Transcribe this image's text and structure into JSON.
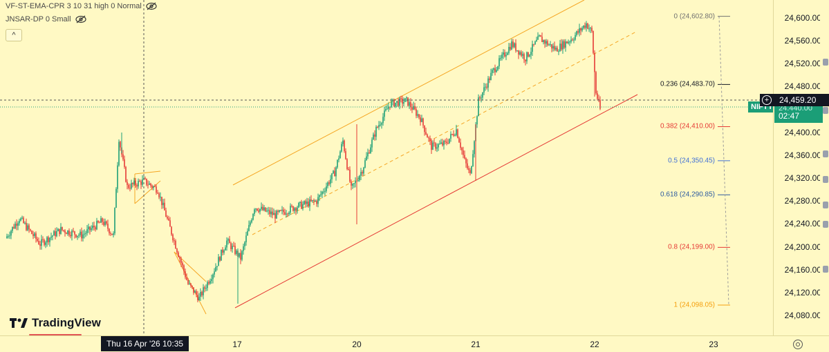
{
  "legends": [
    {
      "text": "VF-ST-EMA-CPR 3 10 31 high 0 Normal",
      "icon": "eye-off-icon"
    },
    {
      "text": "JNSAR-DP 0 Small",
      "icon": "eye-off-icon"
    }
  ],
  "collapse_label": "^",
  "brand": "TradingView",
  "crosshair": {
    "time": "Thu 16 Apr '26   10:35",
    "price": "24,459.20"
  },
  "symbol_badge": "NIFTY",
  "last_price": {
    "price": "24,440.00",
    "countdown": "02:47"
  },
  "colors": {
    "background": "#fff9c4",
    "up_candle": "#1b9e77",
    "down_candle": "#e53935",
    "channel_upper": "#f5a623",
    "channel_mid": "#f5a623",
    "channel_lower": "#e53935"
  },
  "chart_data": {
    "type": "candlestick",
    "price_ticks": [
      "24,600.00",
      "24,560.00",
      "24,520.00",
      "24,480.00",
      "24,440.00",
      "24,400.00",
      "24,360.00",
      "24,320.00",
      "24,280.00",
      "24,240.00",
      "24,200.00",
      "24,160.00",
      "24,120.00",
      "24,080.00"
    ],
    "time_ticks": [
      "17",
      "20",
      "21",
      "22",
      "23"
    ],
    "fib_levels": [
      {
        "label": "0 (24,602.80)",
        "value": 24602.8,
        "color": "#707070"
      },
      {
        "label": "0.236 (24,483.70)",
        "value": 24483.7,
        "color": "#131722"
      },
      {
        "label": "0.382 (24,410.00)",
        "value": 24410.0,
        "color": "#e53935"
      },
      {
        "label": "0.5 (24,350.45)",
        "value": 24350.45,
        "color": "#3f6fd6"
      },
      {
        "label": "0.618 (24,290.85)",
        "value": 24290.85,
        "color": "#2a5aa0"
      },
      {
        "label": "0.8 (24,199.00)",
        "value": 24199.0,
        "color": "#e53935"
      },
      {
        "label": "1 (24,098.05)",
        "value": 24098.05,
        "color": "#f59e0b"
      }
    ],
    "price_anchors": [
      {
        "t": 0,
        "p": 24215
      },
      {
        "t": 10,
        "p": 24250
      },
      {
        "t": 25,
        "p": 24205
      },
      {
        "t": 40,
        "p": 24230
      },
      {
        "t": 55,
        "p": 24220
      },
      {
        "t": 70,
        "p": 24245
      },
      {
        "t": 78,
        "p": 24220
      },
      {
        "t": 82,
        "p": 24390
      },
      {
        "t": 88,
        "p": 24305
      },
      {
        "t": 100,
        "p": 24315
      },
      {
        "t": 110,
        "p": 24300
      },
      {
        "t": 118,
        "p": 24240
      },
      {
        "t": 132,
        "p": 24135
      },
      {
        "t": 140,
        "p": 24110
      },
      {
        "t": 150,
        "p": 24155
      },
      {
        "t": 160,
        "p": 24210
      },
      {
        "t": 170,
        "p": 24180
      },
      {
        "t": 180,
        "p": 24270
      },
      {
        "t": 195,
        "p": 24255
      },
      {
        "t": 210,
        "p": 24270
      },
      {
        "t": 225,
        "p": 24280
      },
      {
        "t": 238,
        "p": 24330
      },
      {
        "t": 244,
        "p": 24385
      },
      {
        "t": 250,
        "p": 24300
      },
      {
        "t": 258,
        "p": 24335
      },
      {
        "t": 268,
        "p": 24405
      },
      {
        "t": 278,
        "p": 24450
      },
      {
        "t": 290,
        "p": 24455
      },
      {
        "t": 300,
        "p": 24425
      },
      {
        "t": 308,
        "p": 24375
      },
      {
        "t": 318,
        "p": 24380
      },
      {
        "t": 326,
        "p": 24405
      },
      {
        "t": 332,
        "p": 24350
      },
      {
        "t": 336,
        "p": 24325
      },
      {
        "t": 342,
        "p": 24455
      },
      {
        "t": 352,
        "p": 24505
      },
      {
        "t": 366,
        "p": 24555
      },
      {
        "t": 376,
        "p": 24530
      },
      {
        "t": 386,
        "p": 24565
      },
      {
        "t": 398,
        "p": 24545
      },
      {
        "t": 410,
        "p": 24565
      },
      {
        "t": 420,
        "p": 24590
      },
      {
        "t": 424,
        "p": 24575
      },
      {
        "t": 427,
        "p": 24470
      },
      {
        "t": 430,
        "p": 24440
      }
    ]
  }
}
